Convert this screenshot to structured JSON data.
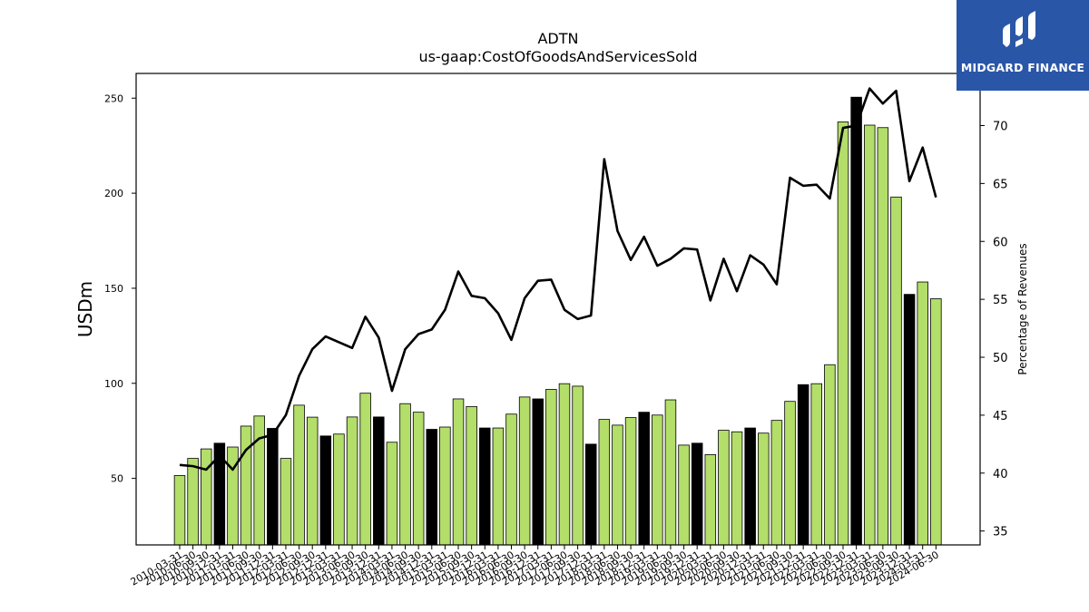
{
  "chart_data": {
    "type": "bar+line",
    "title": "ADTN",
    "subtitle": "us-gaap:CostOfGoodsAndServicesSold",
    "ylabel": "USDm",
    "y2label": "Percentage of Revenues",
    "ylim": [
      15,
      263
    ],
    "y2lim": [
      33.8,
      74.5
    ],
    "yticks": [
      50,
      100,
      150,
      200,
      250
    ],
    "y2ticks": [
      35,
      40,
      45,
      50,
      55,
      60,
      65,
      70
    ],
    "categories": [
      "2010-03-31",
      "2010-06-30",
      "2010-09-30",
      "2010-12-31",
      "2011-03-31",
      "2011-06-30",
      "2011-09-30",
      "2011-12-31",
      "2012-03-31",
      "2012-06-30",
      "2012-09-30",
      "2012-12-31",
      "2013-03-31",
      "2013-06-30",
      "2013-09-30",
      "2013-12-31",
      "2014-03-31",
      "2014-06-30",
      "2014-09-30",
      "2014-12-31",
      "2015-03-31",
      "2015-06-30",
      "2015-09-30",
      "2015-12-31",
      "2016-03-31",
      "2016-06-30",
      "2016-09-30",
      "2016-12-31",
      "2017-03-31",
      "2017-06-30",
      "2017-09-30",
      "2017-12-31",
      "2018-03-31",
      "2018-06-30",
      "2018-09-30",
      "2018-12-31",
      "2019-03-31",
      "2019-06-30",
      "2019-09-30",
      "2019-12-31",
      "2020-03-31",
      "2020-06-30",
      "2020-09-30",
      "2020-12-31",
      "2021-03-31",
      "2021-06-30",
      "2021-09-30",
      "2021-12-31",
      "2022-03-31",
      "2022-06-30",
      "2022-09-30",
      "2022-12-31",
      "2023-03-31",
      "2023-06-30",
      "2023-09-30",
      "2023-12-31",
      "2024-03-31",
      "2024-06-30"
    ],
    "series": [
      {
        "kind": "bar",
        "values": [
          51.5,
          60.5,
          65.5,
          68.5,
          66.5,
          77.5,
          82.8,
          76.3,
          60.5,
          88.5,
          82.2,
          72.3,
          73.3,
          82.3,
          94.8,
          82.3,
          69,
          89.3,
          84.8,
          75.8,
          77,
          91.8,
          87.8,
          76.5,
          76.5,
          83.8,
          92.8,
          91.8,
          96.8,
          99.8,
          98.5,
          68,
          81,
          78,
          82,
          84.8,
          83.3,
          91.3,
          67.5,
          68.5,
          62.5,
          75.3,
          74.5,
          76.5,
          73.8,
          80.5,
          90.5,
          99.3,
          99.8,
          109.8,
          237.5,
          250.5,
          235.8,
          234.5,
          198,
          146.8,
          153.3,
          144.5
        ],
        "highlight": [
          false,
          false,
          false,
          true,
          false,
          false,
          false,
          true,
          false,
          false,
          false,
          true,
          false,
          false,
          false,
          true,
          false,
          false,
          false,
          true,
          false,
          false,
          false,
          true,
          false,
          false,
          false,
          true,
          false,
          false,
          false,
          true,
          false,
          false,
          false,
          true,
          false,
          false,
          false,
          true,
          false,
          false,
          false,
          true,
          false,
          false,
          false,
          true,
          false,
          false,
          false,
          true,
          false,
          false,
          false,
          true,
          false,
          false
        ],
        "colors": {
          "normal": "#b3de69",
          "highlight": "#000000"
        }
      },
      {
        "kind": "line",
        "axis": "right",
        "values": [
          40.7,
          40.6,
          40.3,
          41.5,
          40.3,
          42,
          43,
          43.3,
          45,
          48.4,
          50.7,
          51.8,
          51.3,
          50.8,
          53.5,
          51.7,
          47.1,
          50.7,
          52,
          52.4,
          54.1,
          57.4,
          55.3,
          55.1,
          53.8,
          51.5,
          55.1,
          56.6,
          56.7,
          54.1,
          53.3,
          53.6,
          67.1,
          60.9,
          58.4,
          60.4,
          57.9,
          58.5,
          59.4,
          59.3,
          54.9,
          58.5,
          55.7,
          58.8,
          58,
          56.3,
          65.5,
          64.8,
          64.9,
          63.7,
          69.8,
          70,
          73.2,
          71.9,
          73,
          65.2,
          68.1,
          63.8
        ],
        "color": "#000000"
      }
    ],
    "grid": false,
    "legend": "none"
  },
  "logo": {
    "text": "MIDGARD FINANCE"
  }
}
